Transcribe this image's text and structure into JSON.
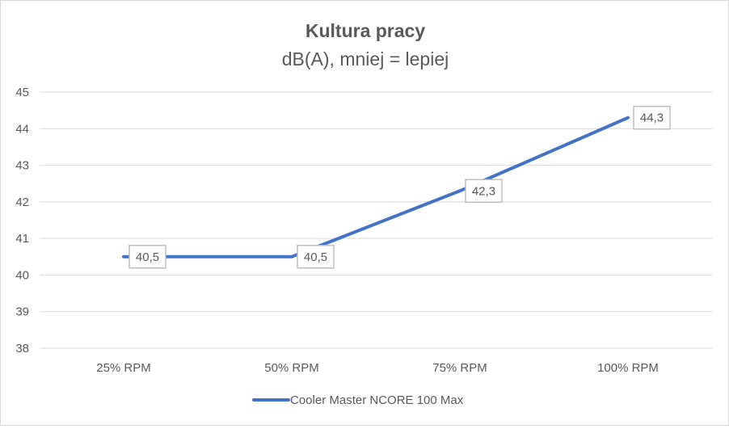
{
  "chart_data": {
    "type": "line",
    "title": "Kultura pracy",
    "subtitle": "dB(A), mniej = lepiej",
    "categories": [
      "25% RPM",
      "50% RPM",
      "75% RPM",
      "100% RPM"
    ],
    "series": [
      {
        "name": "Cooler Master NCORE 100 Max",
        "values": [
          40.5,
          40.5,
          42.3,
          44.3
        ],
        "labels": [
          "40,5",
          "40,5",
          "42,3",
          "44,3"
        ],
        "color": "#4472c4"
      }
    ],
    "ylim": [
      38,
      45
    ],
    "yticks": [
      "38",
      "39",
      "40",
      "41",
      "42",
      "43",
      "44",
      "45"
    ],
    "grid": true,
    "legend": "bottom"
  }
}
